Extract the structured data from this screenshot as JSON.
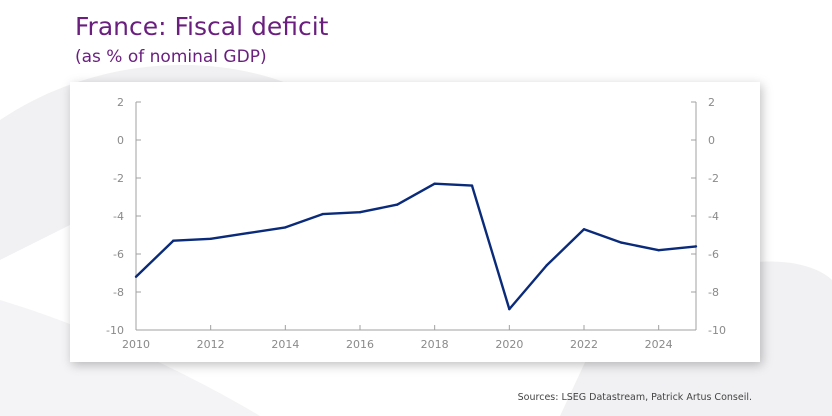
{
  "header": {
    "title": "France: Fiscal deficit",
    "subtitle": "(as % of nominal GDP)"
  },
  "footer": {
    "source": "Sources: LSEG Datastream, Patrick Artus Conseil."
  },
  "colors": {
    "title": "#6a1f7f",
    "line": "#0a2a7a",
    "axis": "#a0a0a0",
    "tick_text": "#8a8a8a"
  },
  "chart_data": {
    "type": "line",
    "title": "",
    "xlabel": "",
    "ylabel": "",
    "xlim": [
      2010,
      2025
    ],
    "ylim": [
      -10,
      2
    ],
    "x_ticks": [
      "2010",
      "2012",
      "2014",
      "2016",
      "2018",
      "2020",
      "2022",
      "2024"
    ],
    "y_ticks": [
      "2",
      "0",
      "-2",
      "-4",
      "-6",
      "-8",
      "-10"
    ],
    "y_ticks_right": [
      "2",
      "0",
      "-2",
      "-4",
      "-6",
      "-8",
      "-10"
    ],
    "grid": false,
    "legend": "none",
    "series": [
      {
        "x": [
          2010,
          2011,
          2012,
          2013,
          2014,
          2015,
          2016,
          2017,
          2018,
          2019,
          2020,
          2021,
          2022,
          2023,
          2024,
          2025
        ],
        "values": [
          -7.2,
          -5.3,
          -5.2,
          -4.9,
          -4.6,
          -3.9,
          -3.8,
          -3.4,
          -2.3,
          -2.4,
          -8.9,
          -6.6,
          -4.7,
          -5.4,
          -5.8,
          -5.6
        ]
      }
    ]
  }
}
